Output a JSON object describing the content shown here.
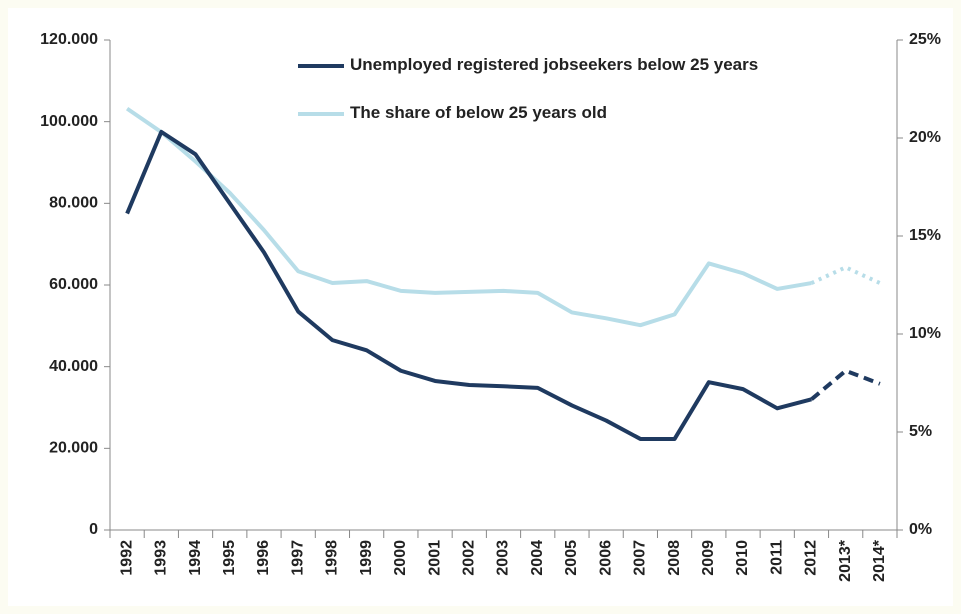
{
  "chart_data": {
    "type": "line",
    "categories": [
      "1992",
      "1993",
      "1994",
      "1995",
      "1996",
      "1997",
      "1998",
      "1999",
      "2000",
      "2001",
      "2002",
      "2003",
      "2004",
      "2005",
      "2006",
      "2007",
      "2008",
      "2009",
      "2010",
      "2011",
      "2012",
      "2013*",
      "2014*"
    ],
    "series": [
      {
        "name": "Unemployed registered jobseekers below 25 years",
        "color": "#1f3a60",
        "values": [
          77500,
          97500,
          92000,
          80000,
          68000,
          53500,
          46500,
          44000,
          39000,
          36500,
          35500,
          35200,
          34800,
          30500,
          26800,
          22300,
          22300,
          36200,
          34500,
          29800,
          32000,
          39000,
          35800
        ]
      },
      {
        "name": "The share of below 25 years old",
        "color": "#b7dde8",
        "axis": "y2",
        "values": [
          21.5,
          20.3,
          18.8,
          17.2,
          15.3,
          13.2,
          12.6,
          12.7,
          12.2,
          12.1,
          12.15,
          12.2,
          12.1,
          11.1,
          10.8,
          10.45,
          11.0,
          13.6,
          13.1,
          12.3,
          12.6,
          13.4,
          12.6
        ]
      }
    ],
    "ylim": [
      0,
      120000
    ],
    "yticks": [
      0,
      {
        "value": 20000,
        "label": "20.000"
      },
      {
        "value": 40000,
        "label": "40.000"
      },
      {
        "value": 60000,
        "label": "60.000"
      },
      {
        "value": 80000,
        "label": "80.000"
      },
      {
        "value": 100000,
        "label": "100.000"
      },
      {
        "value": 120000,
        "label": "120.000"
      }
    ],
    "y2lim": [
      0,
      25
    ],
    "y2ticks": [
      {
        "value": 0,
        "label": "0%"
      },
      {
        "value": 5,
        "label": "5%"
      },
      {
        "value": 10,
        "label": "10%"
      },
      {
        "value": 15,
        "label": "15%"
      },
      {
        "value": 20,
        "label": "20%"
      },
      {
        "value": 25,
        "label": "25%"
      }
    ],
    "grid": false
  }
}
